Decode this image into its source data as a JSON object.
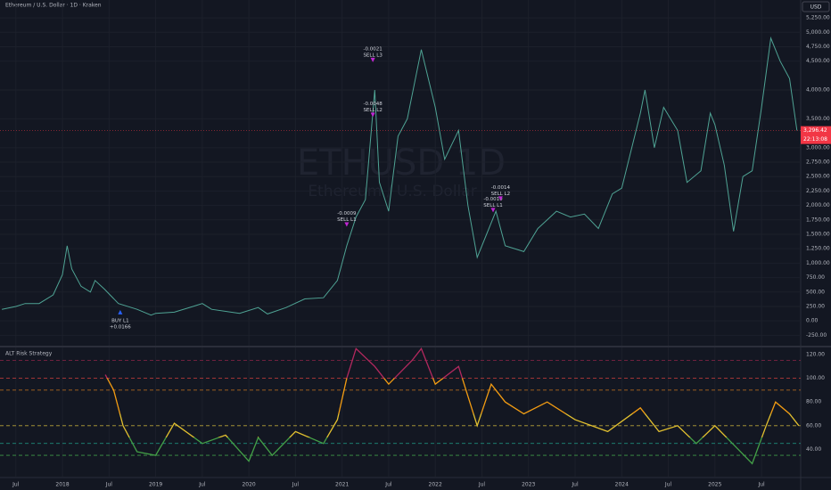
{
  "chart_data": [
    {
      "type": "line",
      "title": "Ethereum / U.S. Dollar · 1D · Kraken",
      "watermark": "ETHUSD 1D",
      "watermark_sub": "Ethereum / U.S. Dollar",
      "currency": "USD",
      "color": "#4fa394",
      "series": [
        {
          "name": "ETHUSD",
          "x": [
            2017.35,
            2017.5,
            2017.6,
            2017.75,
            2017.9,
            2018.0,
            2018.05,
            2018.1,
            2018.2,
            2018.3,
            2018.35,
            2018.45,
            2018.6,
            2018.8,
            2018.95,
            2019.0,
            2019.2,
            2019.4,
            2019.5,
            2019.6,
            2019.9,
            2020.1,
            2020.2,
            2020.4,
            2020.6,
            2020.8,
            2020.95,
            2021.05,
            2021.15,
            2021.25,
            2021.35,
            2021.4,
            2021.5,
            2021.6,
            2021.7,
            2021.85,
            2022.0,
            2022.1,
            2022.25,
            2022.35,
            2022.45,
            2022.55,
            2022.65,
            2022.75,
            2022.95,
            2023.1,
            2023.3,
            2023.45,
            2023.6,
            2023.75,
            2023.9,
            2024.0,
            2024.2,
            2024.25,
            2024.35,
            2024.45,
            2024.6,
            2024.7,
            2024.85,
            2024.95,
            2025.0,
            2025.1,
            2025.2,
            2025.3,
            2025.4,
            2025.5,
            2025.6,
            2025.7,
            2025.8,
            2025.88
          ],
          "values": [
            200,
            250,
            300,
            300,
            450,
            800,
            1300,
            900,
            600,
            500,
            700,
            550,
            300,
            200,
            100,
            130,
            150,
            250,
            300,
            200,
            130,
            230,
            120,
            230,
            380,
            400,
            700,
            1300,
            1800,
            2100,
            4000,
            2400,
            1900,
            3200,
            3500,
            4700,
            3700,
            2800,
            3300,
            2000,
            1100,
            1500,
            1900,
            1300,
            1200,
            1600,
            1900,
            1800,
            1850,
            1600,
            2200,
            2300,
            3600,
            4000,
            3000,
            3700,
            3300,
            2400,
            2600,
            3600,
            3400,
            2700,
            1550,
            2500,
            2600,
            3700,
            4900,
            4500,
            4200,
            3300
          ]
        }
      ],
      "last_price": {
        "value": 3296.42,
        "label": "3,296.42",
        "countdown": "22:13:08"
      },
      "annotations": [
        {
          "x": 2018.62,
          "y": 220,
          "dir": "up",
          "texts": [
            "BUY L1",
            "+0.0166"
          ]
        },
        {
          "x": 2021.05,
          "y": 1600,
          "dir": "down",
          "texts": [
            "-0.0009",
            "SELL L1"
          ]
        },
        {
          "x": 2021.33,
          "y": 3500,
          "dir": "down",
          "texts": [
            "-0.0048",
            "SELL L2"
          ]
        },
        {
          "x": 2021.33,
          "y": 4450,
          "dir": "down",
          "texts": [
            "-0.0021",
            "SELL L3"
          ]
        },
        {
          "x": 2022.62,
          "y": 1850,
          "dir": "down",
          "texts": [
            "-0.0010",
            "SELL L1"
          ]
        },
        {
          "x": 2022.7,
          "y": 2050,
          "dir": "down",
          "texts": [
            "-0.0014",
            "SELL L2"
          ]
        }
      ],
      "xlim": [
        2017.33,
        2025.92
      ],
      "xticks": [
        {
          "value": 2017.5,
          "label": "Jul"
        },
        {
          "value": 2018,
          "label": "2018"
        },
        {
          "value": 2018.5,
          "label": "Jul"
        },
        {
          "value": 2019,
          "label": "2019"
        },
        {
          "value": 2019.5,
          "label": "Jul"
        },
        {
          "value": 2020,
          "label": "2020"
        },
        {
          "value": 2020.5,
          "label": "Jul"
        },
        {
          "value": 2021,
          "label": "2021"
        },
        {
          "value": 2021.5,
          "label": "Jul"
        },
        {
          "value": 2022,
          "label": "2022"
        },
        {
          "value": 2022.5,
          "label": "Jul"
        },
        {
          "value": 2023,
          "label": "2023"
        },
        {
          "value": 2023.5,
          "label": "Jul"
        },
        {
          "value": 2024,
          "label": "2024"
        },
        {
          "value": 2024.5,
          "label": "Jul"
        },
        {
          "value": 2025,
          "label": "2025"
        },
        {
          "value": 2025.5,
          "label": "Jul"
        }
      ],
      "ylim": [
        -430,
        5560
      ],
      "yticks": [
        {
          "value": -250,
          "label": "-250.00"
        },
        {
          "value": 0,
          "label": "0.00"
        },
        {
          "value": 250,
          "label": "250.00"
        },
        {
          "value": 500,
          "label": "500.00"
        },
        {
          "value": 750,
          "label": "750.00"
        },
        {
          "value": 1000,
          "label": "1,000.00"
        },
        {
          "value": 1250,
          "label": "1,250.00"
        },
        {
          "value": 1500,
          "label": "1,500.00"
        },
        {
          "value": 1750,
          "label": "1,750.00"
        },
        {
          "value": 2000,
          "label": "2,000.00"
        },
        {
          "value": 2250,
          "label": "2,250.00"
        },
        {
          "value": 2500,
          "label": "2,500.00"
        },
        {
          "value": 2750,
          "label": "2,750.00"
        },
        {
          "value": 3000,
          "label": "3,000.00"
        },
        {
          "value": 3500,
          "label": "3,500.00"
        },
        {
          "value": 4000,
          "label": "4,000.00"
        },
        {
          "value": 4500,
          "label": "4,500.00"
        },
        {
          "value": 4750,
          "label": "4,750.00"
        },
        {
          "value": 5000,
          "label": "5,000.00"
        },
        {
          "value": 5250,
          "label": "5,250.00"
        }
      ],
      "grid": true
    },
    {
      "type": "line",
      "title": "ALT Risk Strategy",
      "series": [
        {
          "name": "Risk",
          "x": [
            2018.46,
            2018.55,
            2018.65,
            2018.8,
            2019.0,
            2019.2,
            2019.5,
            2019.75,
            2020.0,
            2020.1,
            2020.25,
            2020.5,
            2020.8,
            2020.95,
            2021.05,
            2021.15,
            2021.35,
            2021.5,
            2021.75,
            2021.85,
            2022.0,
            2022.25,
            2022.45,
            2022.6,
            2022.75,
            2022.95,
            2023.2,
            2023.5,
            2023.85,
            2024.2,
            2024.4,
            2024.6,
            2024.8,
            2025.0,
            2025.25,
            2025.4,
            2025.55,
            2025.65,
            2025.8,
            2025.9
          ],
          "values": [
            103,
            90,
            60,
            38,
            35,
            62,
            45,
            52,
            30,
            50,
            35,
            55,
            45,
            65,
            100,
            125,
            110,
            95,
            115,
            125,
            95,
            110,
            60,
            95,
            80,
            70,
            80,
            65,
            55,
            75,
            55,
            60,
            45,
            60,
            40,
            28,
            60,
            80,
            70,
            60
          ]
        }
      ],
      "color_bands": [
        {
          "from": 100,
          "color": "#b3285e"
        },
        {
          "from": 70,
          "color": "#f39c12"
        },
        {
          "from": 50,
          "color": "#e3c12f"
        },
        {
          "from": 0,
          "color": "#43a047"
        }
      ],
      "levels": [
        {
          "value": 115,
          "color": "#8e2447"
        },
        {
          "value": 100,
          "color": "#b53a3a"
        },
        {
          "value": 90,
          "color": "#c9731c"
        },
        {
          "value": 60,
          "color": "#b7a23a"
        },
        {
          "value": 45,
          "color": "#1f9e8a"
        },
        {
          "value": 35,
          "color": "#3f9a48"
        }
      ],
      "ylim": [
        17,
        126
      ],
      "yticks": [
        {
          "value": 40,
          "label": "40.00"
        },
        {
          "value": 60,
          "label": "60.00"
        },
        {
          "value": 80,
          "label": "80.00"
        },
        {
          "value": 100,
          "label": "100.00"
        },
        {
          "value": 120,
          "label": "120.00"
        }
      ]
    }
  ]
}
